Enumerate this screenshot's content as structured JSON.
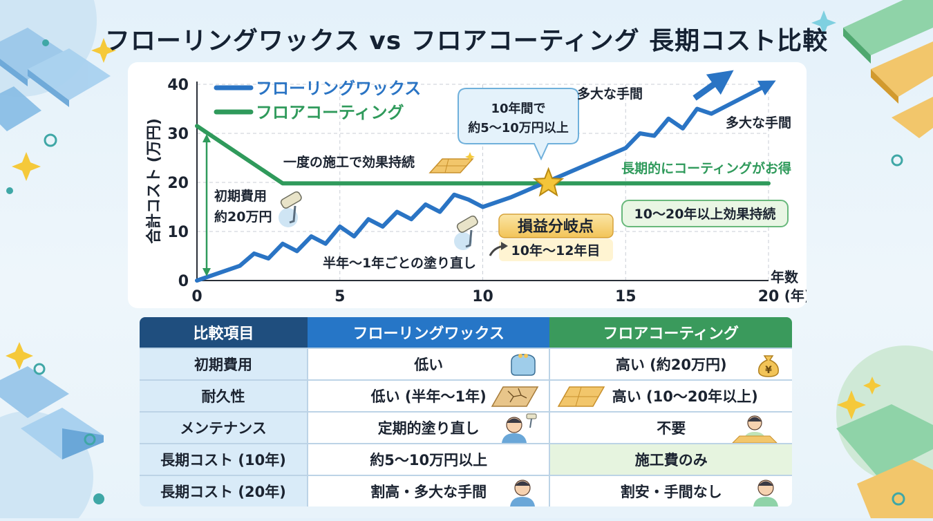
{
  "title": "フローリングワックス vs フロアコーティング 長期コスト比較",
  "chart_data": {
    "type": "line",
    "ylabel": "合計コスト (万円)",
    "xlabel": "年数 (年)",
    "xlabel_top": "年数",
    "xlabel_unit": "(年)",
    "xlim": [
      0,
      20
    ],
    "ylim": [
      0,
      40
    ],
    "xticks": [
      0,
      5,
      10,
      15,
      20
    ],
    "yticks": [
      0,
      10,
      20,
      30,
      40
    ],
    "grid": true,
    "legend": "top-left",
    "series": [
      {
        "name": "フローリングワックス",
        "color": "#2a74c4",
        "x": [
          0,
          1.5,
          2,
          2.5,
          2.5,
          3,
          3.5,
          3.5,
          4,
          4.5,
          4.5,
          5,
          5.5,
          5.5,
          6,
          6.5,
          6.5,
          7,
          7.5,
          7.5,
          8,
          8.5,
          8.5,
          9,
          9.5,
          9.5,
          10,
          11,
          12,
          13,
          14,
          15,
          15.5,
          15.5,
          16,
          16.5,
          16.5,
          17,
          17.5,
          17.5,
          18,
          19,
          20
        ],
        "values": [
          0,
          3,
          5.5,
          4.5,
          4.5,
          7.5,
          6,
          6,
          9,
          7.5,
          7.5,
          11,
          9,
          9,
          12.5,
          11,
          11,
          14,
          12.5,
          12.5,
          15.5,
          14,
          14,
          17.5,
          16.5,
          16.5,
          15,
          17,
          19.5,
          22,
          24.5,
          27,
          30,
          30,
          29.5,
          33,
          33,
          31,
          35,
          35,
          34,
          37,
          40
        ]
      },
      {
        "name": "フロアコーティング",
        "color": "#2f9a5b",
        "x": [
          0,
          3,
          20
        ],
        "values": [
          31.5,
          19.8,
          19.8
        ]
      }
    ],
    "annotations": {
      "initial_cost": "初期費用\n約20万円",
      "one_time": "一度の施工で効果持続",
      "repaint": "半年〜1年ごとの塗り直し",
      "bubble": "10年間で\n約5〜10万円以上",
      "breakeven_title": "損益分岐点",
      "breakeven_range": "10年〜12年目",
      "breakeven_x": 12.3,
      "breakeven_y": 19.8,
      "long_term": "長期的にコーティングがお得",
      "effect": "10〜20年以上効果持続",
      "effort1": "多大な手間",
      "effort2": "多大な手間"
    }
  },
  "table": {
    "headers": [
      "比較項目",
      "フローリングワックス",
      "フロアコーティング"
    ],
    "rows": [
      [
        "初期費用",
        "低い",
        "高い (約20万円)"
      ],
      [
        "耐久性",
        "低い (半年〜1年)",
        "高い (10〜20年以上)"
      ],
      [
        "メンテナンス",
        "定期的塗り直し",
        "不要"
      ],
      [
        "長期コスト (10年)",
        "約5〜10万円以上",
        "施工費のみ"
      ],
      [
        "長期コスト (20年)",
        "割高・多大な手間",
        "割安・手間なし"
      ]
    ],
    "icons": {
      "wallet": "wallet-icon",
      "money_bag": "money-bag-icon",
      "money_bag_symbol": "¥",
      "cracked_floor": "cracked-floor-icon",
      "floor": "wood-floor-icon",
      "worried": "worried-person-icon",
      "happy": "happy-person-icon"
    }
  }
}
